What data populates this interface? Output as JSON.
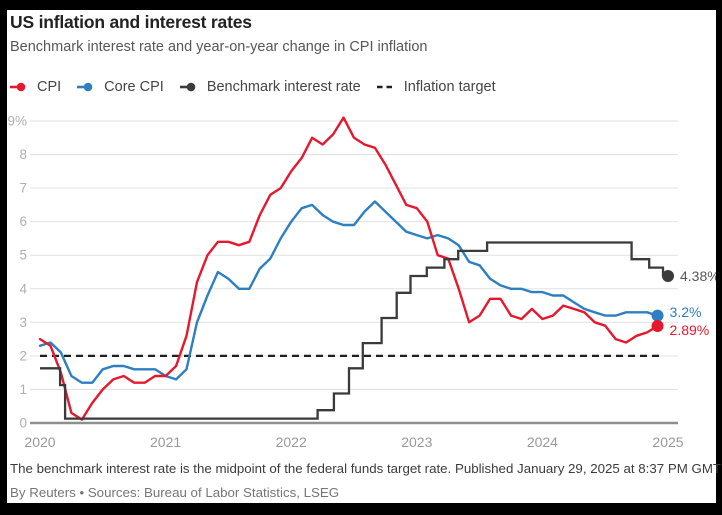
{
  "header": {
    "title": "US inflation and interest rates",
    "subtitle": "Benchmark interest rate and year-on-year change in CPI inflation"
  },
  "footer": {
    "note": "The benchmark interest rate is the midpoint of the federal funds target rate. Published January 29, 2025 at 8:37 PM GMT",
    "attribution": "By Reuters • Sources: Bureau of Labor Statistics, LSEG"
  },
  "colors": {
    "cpi": "#e6182e",
    "core_cpi": "#2d7fc1",
    "benchmark": "#3a3a3a",
    "benchmark_label": "#595959",
    "target": "#1f1f1f",
    "grid": "#e2e2e2",
    "axis": "#8f8f8f",
    "y_tick_label": "#b0b0b0",
    "x_tick_label": "#999999",
    "background": "#ffffff",
    "frame": "#000000"
  },
  "legend": {
    "items": [
      {
        "series": "cpi",
        "label": "CPI",
        "marker": "line-dot"
      },
      {
        "series": "core_cpi",
        "label": "Core CPI",
        "marker": "line-dot"
      },
      {
        "series": "benchmark",
        "label": "Benchmark interest rate",
        "marker": "line-dot"
      },
      {
        "series": "target",
        "label": "Inflation target",
        "marker": "dashes"
      }
    ]
  },
  "chart_data": {
    "type": "line",
    "title": "US inflation and interest rates",
    "xlabel": "",
    "ylabel": "",
    "ylim": [
      0,
      9
    ],
    "x_range_years": [
      2020,
      2025.05
    ],
    "grid": "horizontal",
    "legend_position": "top",
    "yticks": [
      {
        "v": 0,
        "label": "0"
      },
      {
        "v": 1,
        "label": "1"
      },
      {
        "v": 2,
        "label": "2"
      },
      {
        "v": 3,
        "label": "3"
      },
      {
        "v": 4,
        "label": "4"
      },
      {
        "v": 5,
        "label": "5"
      },
      {
        "v": 6,
        "label": "6"
      },
      {
        "v": 7,
        "label": "7"
      },
      {
        "v": 8,
        "label": "8"
      },
      {
        "v": 9,
        "label": "9%"
      }
    ],
    "xticks": [
      {
        "v": 2020,
        "label": "2020"
      },
      {
        "v": 2021,
        "label": "2021"
      },
      {
        "v": 2022,
        "label": "2022"
      },
      {
        "v": 2023,
        "label": "2023"
      },
      {
        "v": 2024,
        "label": "2024"
      },
      {
        "v": 2025,
        "label": "2025"
      }
    ],
    "series": [
      {
        "id": "core_cpi",
        "name": "Core CPI",
        "render": "monthly-line",
        "start": "2020-01",
        "end": "2024-12",
        "end_label": "3.2%",
        "end_label_dy": 1.5,
        "values": [
          2.3,
          2.4,
          2.1,
          1.4,
          1.2,
          1.2,
          1.6,
          1.7,
          1.7,
          1.6,
          1.6,
          1.6,
          1.4,
          1.3,
          1.6,
          3.0,
          3.8,
          4.5,
          4.3,
          4.0,
          4.0,
          4.6,
          4.9,
          5.5,
          6.0,
          6.4,
          6.5,
          6.2,
          6.0,
          5.9,
          5.9,
          6.3,
          6.6,
          6.3,
          6.0,
          5.7,
          5.6,
          5.5,
          5.6,
          5.5,
          5.3,
          4.8,
          4.7,
          4.3,
          4.1,
          4.0,
          4.0,
          3.9,
          3.9,
          3.8,
          3.8,
          3.6,
          3.4,
          3.3,
          3.2,
          3.2,
          3.3,
          3.3,
          3.3,
          3.2
        ]
      },
      {
        "id": "cpi",
        "name": "CPI",
        "render": "monthly-line",
        "start": "2020-01",
        "end": "2024-12",
        "end_label": "2.89%",
        "end_label_dy": 9,
        "values": [
          2.5,
          2.3,
          1.5,
          0.3,
          0.1,
          0.6,
          1.0,
          1.3,
          1.4,
          1.2,
          1.2,
          1.4,
          1.4,
          1.7,
          2.6,
          4.2,
          5.0,
          5.4,
          5.4,
          5.3,
          5.4,
          6.2,
          6.8,
          7.0,
          7.5,
          7.9,
          8.5,
          8.3,
          8.6,
          9.1,
          8.5,
          8.3,
          8.2,
          7.7,
          7.1,
          6.5,
          6.4,
          6.0,
          5.0,
          4.9,
          4.0,
          3.0,
          3.2,
          3.7,
          3.7,
          3.2,
          3.1,
          3.4,
          3.1,
          3.2,
          3.5,
          3.4,
          3.3,
          3.0,
          2.9,
          2.5,
          2.4,
          2.6,
          2.7,
          2.89
        ]
      },
      {
        "id": "benchmark",
        "name": "Benchmark interest rate",
        "render": "step-line",
        "end_label": "4.38%",
        "end_label_dy": 5,
        "end_x": 2025.0,
        "points": [
          [
            2020.0,
            1.63
          ],
          [
            2020.16,
            1.13
          ],
          [
            2020.2,
            0.13
          ],
          [
            2022.21,
            0.38
          ],
          [
            2022.34,
            0.88
          ],
          [
            2022.46,
            1.63
          ],
          [
            2022.57,
            2.38
          ],
          [
            2022.72,
            3.13
          ],
          [
            2022.84,
            3.88
          ],
          [
            2022.95,
            4.38
          ],
          [
            2023.08,
            4.63
          ],
          [
            2023.22,
            4.88
          ],
          [
            2023.33,
            5.13
          ],
          [
            2023.56,
            5.38
          ],
          [
            2024.71,
            4.88
          ],
          [
            2024.85,
            4.63
          ],
          [
            2024.96,
            4.38
          ]
        ]
      },
      {
        "id": "target",
        "name": "Inflation target",
        "render": "dashed-hline",
        "value": 2,
        "x_span": [
          2020.0,
          2024.93
        ]
      }
    ]
  }
}
